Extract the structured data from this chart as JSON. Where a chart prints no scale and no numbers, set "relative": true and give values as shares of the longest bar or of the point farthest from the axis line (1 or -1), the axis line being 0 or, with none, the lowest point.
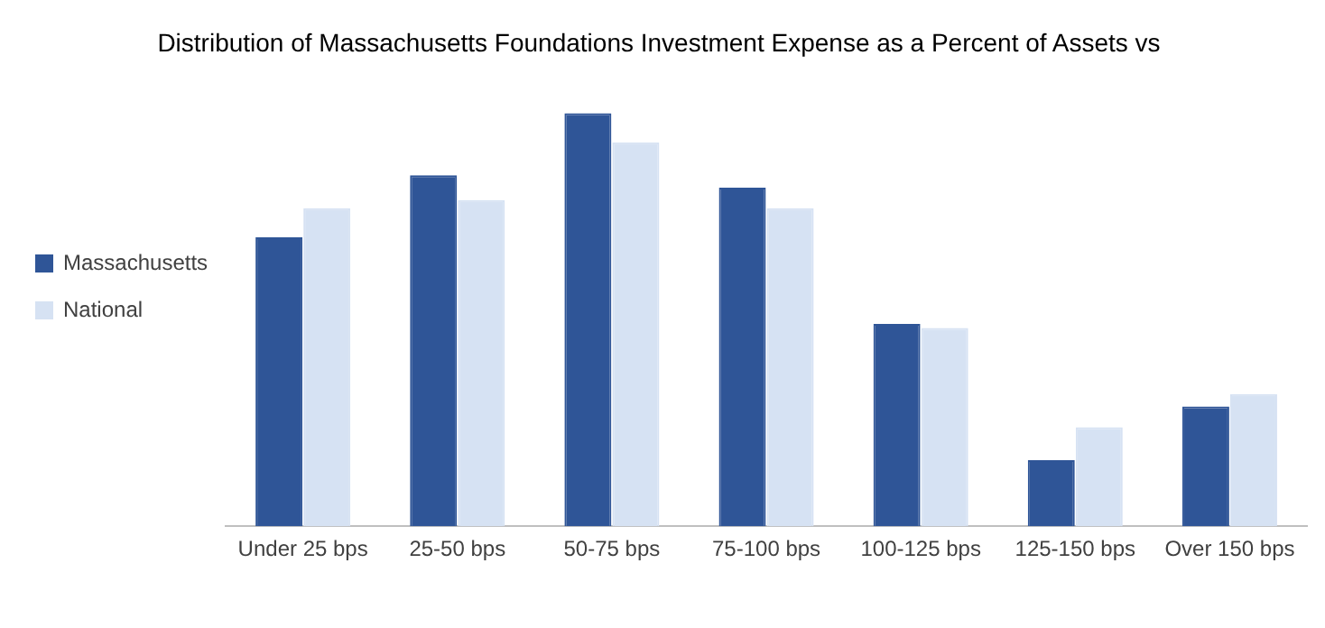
{
  "chart_data": {
    "type": "bar",
    "title": "Distribution of Massachusetts Foundations Investment Expense as a Percent of Assets vs",
    "relative": true,
    "grid": false,
    "legend": "left",
    "categories": [
      "Under 25 bps",
      "25-50 bps",
      "50-75 bps",
      "75-100 bps",
      "100-125 bps",
      "125-150 bps",
      "Over 150 bps"
    ],
    "series": [
      {
        "name": "Massachusetts",
        "color": "#2f5597",
        "values": [
          0.7,
          0.85,
          1,
          0.82,
          0.49,
          0.16,
          0.29
        ]
      },
      {
        "name": "National",
        "color": "#d6e2f3",
        "values": [
          0.77,
          0.79,
          0.93,
          0.77,
          0.48,
          0.24,
          0.32
        ]
      }
    ]
  }
}
